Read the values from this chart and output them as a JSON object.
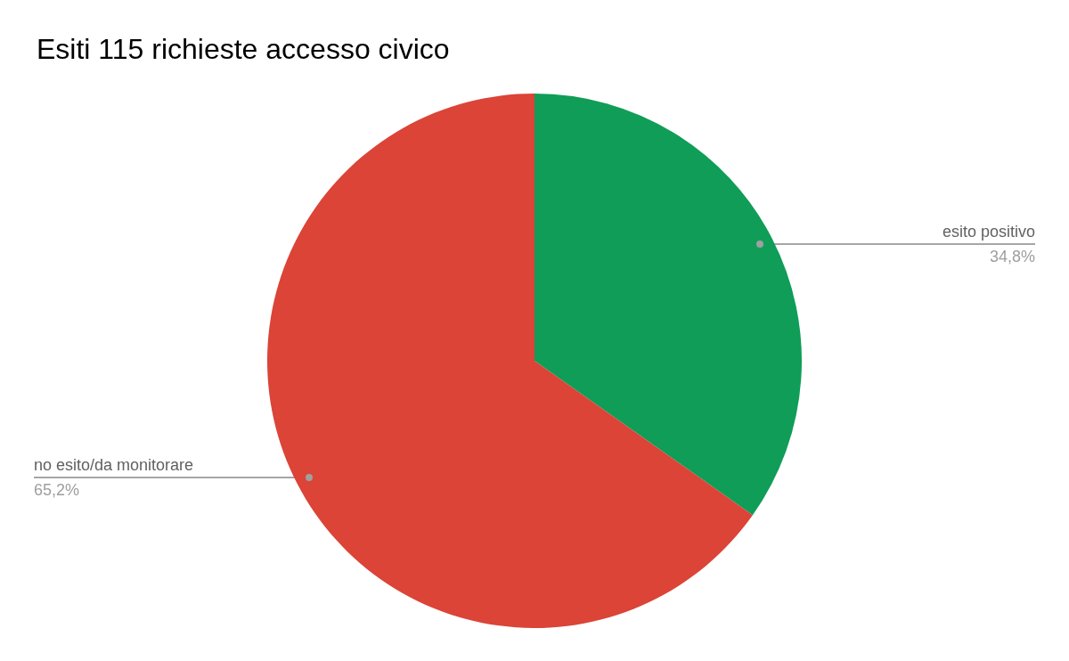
{
  "chart_data": {
    "type": "pie",
    "title": "Esiti 115 richieste accesso civico",
    "categories": [
      "esito positivo",
      "no esito/da monitorare"
    ],
    "values": [
      34.8,
      65.2
    ],
    "colors": [
      "#0f9d58",
      "#db4437"
    ],
    "value_labels": [
      "34,8%",
      "65,2%"
    ]
  }
}
